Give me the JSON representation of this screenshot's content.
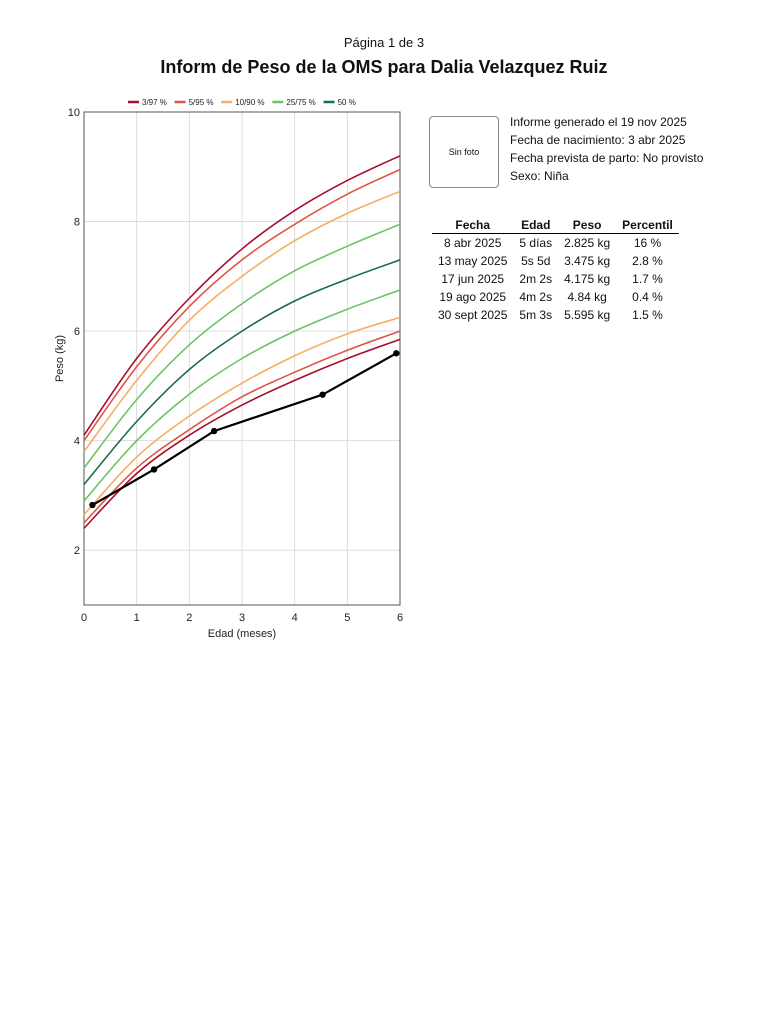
{
  "page_label": "Página 1 de 3",
  "report_title": "Inform de Peso de la OMS para Dalia Velazquez Ruiz",
  "photo_placeholder": "Sin foto",
  "info": {
    "generated": "Informe generado el 19 nov 2025",
    "birth_date": "Fecha de nacimiento: 3 abr 2025",
    "due_date": "Fecha prevista de parto: No provisto",
    "sex": "Sexo: Niña"
  },
  "table": {
    "headers": [
      "Fecha",
      "Edad",
      "Peso",
      "Percentil"
    ],
    "rows": [
      [
        "8 abr 2025",
        "5 días",
        "2.825 kg",
        "16 %"
      ],
      [
        "13 may 2025",
        "5s 5d",
        "3.475 kg",
        "2.8 %"
      ],
      [
        "17 jun 2025",
        "2m 2s",
        "4.175 kg",
        "1.7 %"
      ],
      [
        "19 ago 2025",
        "4m 2s",
        "4.84 kg",
        "0.4 %"
      ],
      [
        "30 sept 2025",
        "5m 3s",
        "5.595 kg",
        "1.5 %"
      ]
    ]
  },
  "chart_data": {
    "type": "line",
    "xlabel": "Edad (meses)",
    "ylabel": "Peso (kg)",
    "xlim": [
      0,
      6
    ],
    "ylim": [
      1,
      10
    ],
    "xticks": [
      0,
      1,
      2,
      3,
      4,
      5,
      6
    ],
    "yticks": [
      2,
      4,
      6,
      8,
      10
    ],
    "grid": true,
    "legend_position": "top",
    "legend": [
      {
        "label": "3/97 %",
        "color": "#a50f2d"
      },
      {
        "label": "5/95 %",
        "color": "#e05545"
      },
      {
        "label": "10/90 %",
        "color": "#f7ad62"
      },
      {
        "label": "25/75 %",
        "color": "#6cc364"
      },
      {
        "label": "50 %",
        "color": "#1a6e44"
      }
    ],
    "percentile_x": [
      0,
      1,
      2,
      3,
      4,
      5,
      6
    ],
    "percentile_curves": [
      {
        "group": "3/97 %",
        "color": "#a50f2d",
        "values": [
          4.1,
          5.5,
          6.6,
          7.5,
          8.2,
          8.75,
          9.2
        ]
      },
      {
        "group": "5/95 %",
        "color": "#e05545",
        "values": [
          4.0,
          5.35,
          6.45,
          7.3,
          7.95,
          8.5,
          8.95
        ]
      },
      {
        "group": "10/90 %",
        "color": "#f7ad62",
        "values": [
          3.8,
          5.1,
          6.2,
          7.0,
          7.65,
          8.15,
          8.55
        ]
      },
      {
        "group": "25/75 %",
        "color": "#6cc364",
        "values": [
          3.5,
          4.75,
          5.75,
          6.5,
          7.1,
          7.55,
          7.95
        ]
      },
      {
        "group": "50 %",
        "color": "#1a6e44",
        "values": [
          3.2,
          4.35,
          5.3,
          6.0,
          6.55,
          6.95,
          7.3
        ]
      },
      {
        "group": "25/75 %",
        "color": "#6cc364",
        "values": [
          2.9,
          4.0,
          4.85,
          5.5,
          6.0,
          6.4,
          6.75
        ]
      },
      {
        "group": "10/90 %",
        "color": "#f7ad62",
        "values": [
          2.65,
          3.7,
          4.45,
          5.05,
          5.55,
          5.95,
          6.25
        ]
      },
      {
        "group": "5/95 %",
        "color": "#e05545",
        "values": [
          2.5,
          3.5,
          4.2,
          4.8,
          5.25,
          5.65,
          6.0
        ]
      },
      {
        "group": "3/97 %",
        "color": "#a50f2d",
        "values": [
          2.4,
          3.4,
          4.1,
          4.65,
          5.1,
          5.5,
          5.85
        ]
      }
    ],
    "series": [
      {
        "x": [
          0.16,
          1.33,
          2.47,
          4.53,
          5.93
        ],
        "y": [
          2.825,
          3.475,
          4.175,
          4.84,
          5.595
        ],
        "color": "#000000"
      }
    ]
  }
}
